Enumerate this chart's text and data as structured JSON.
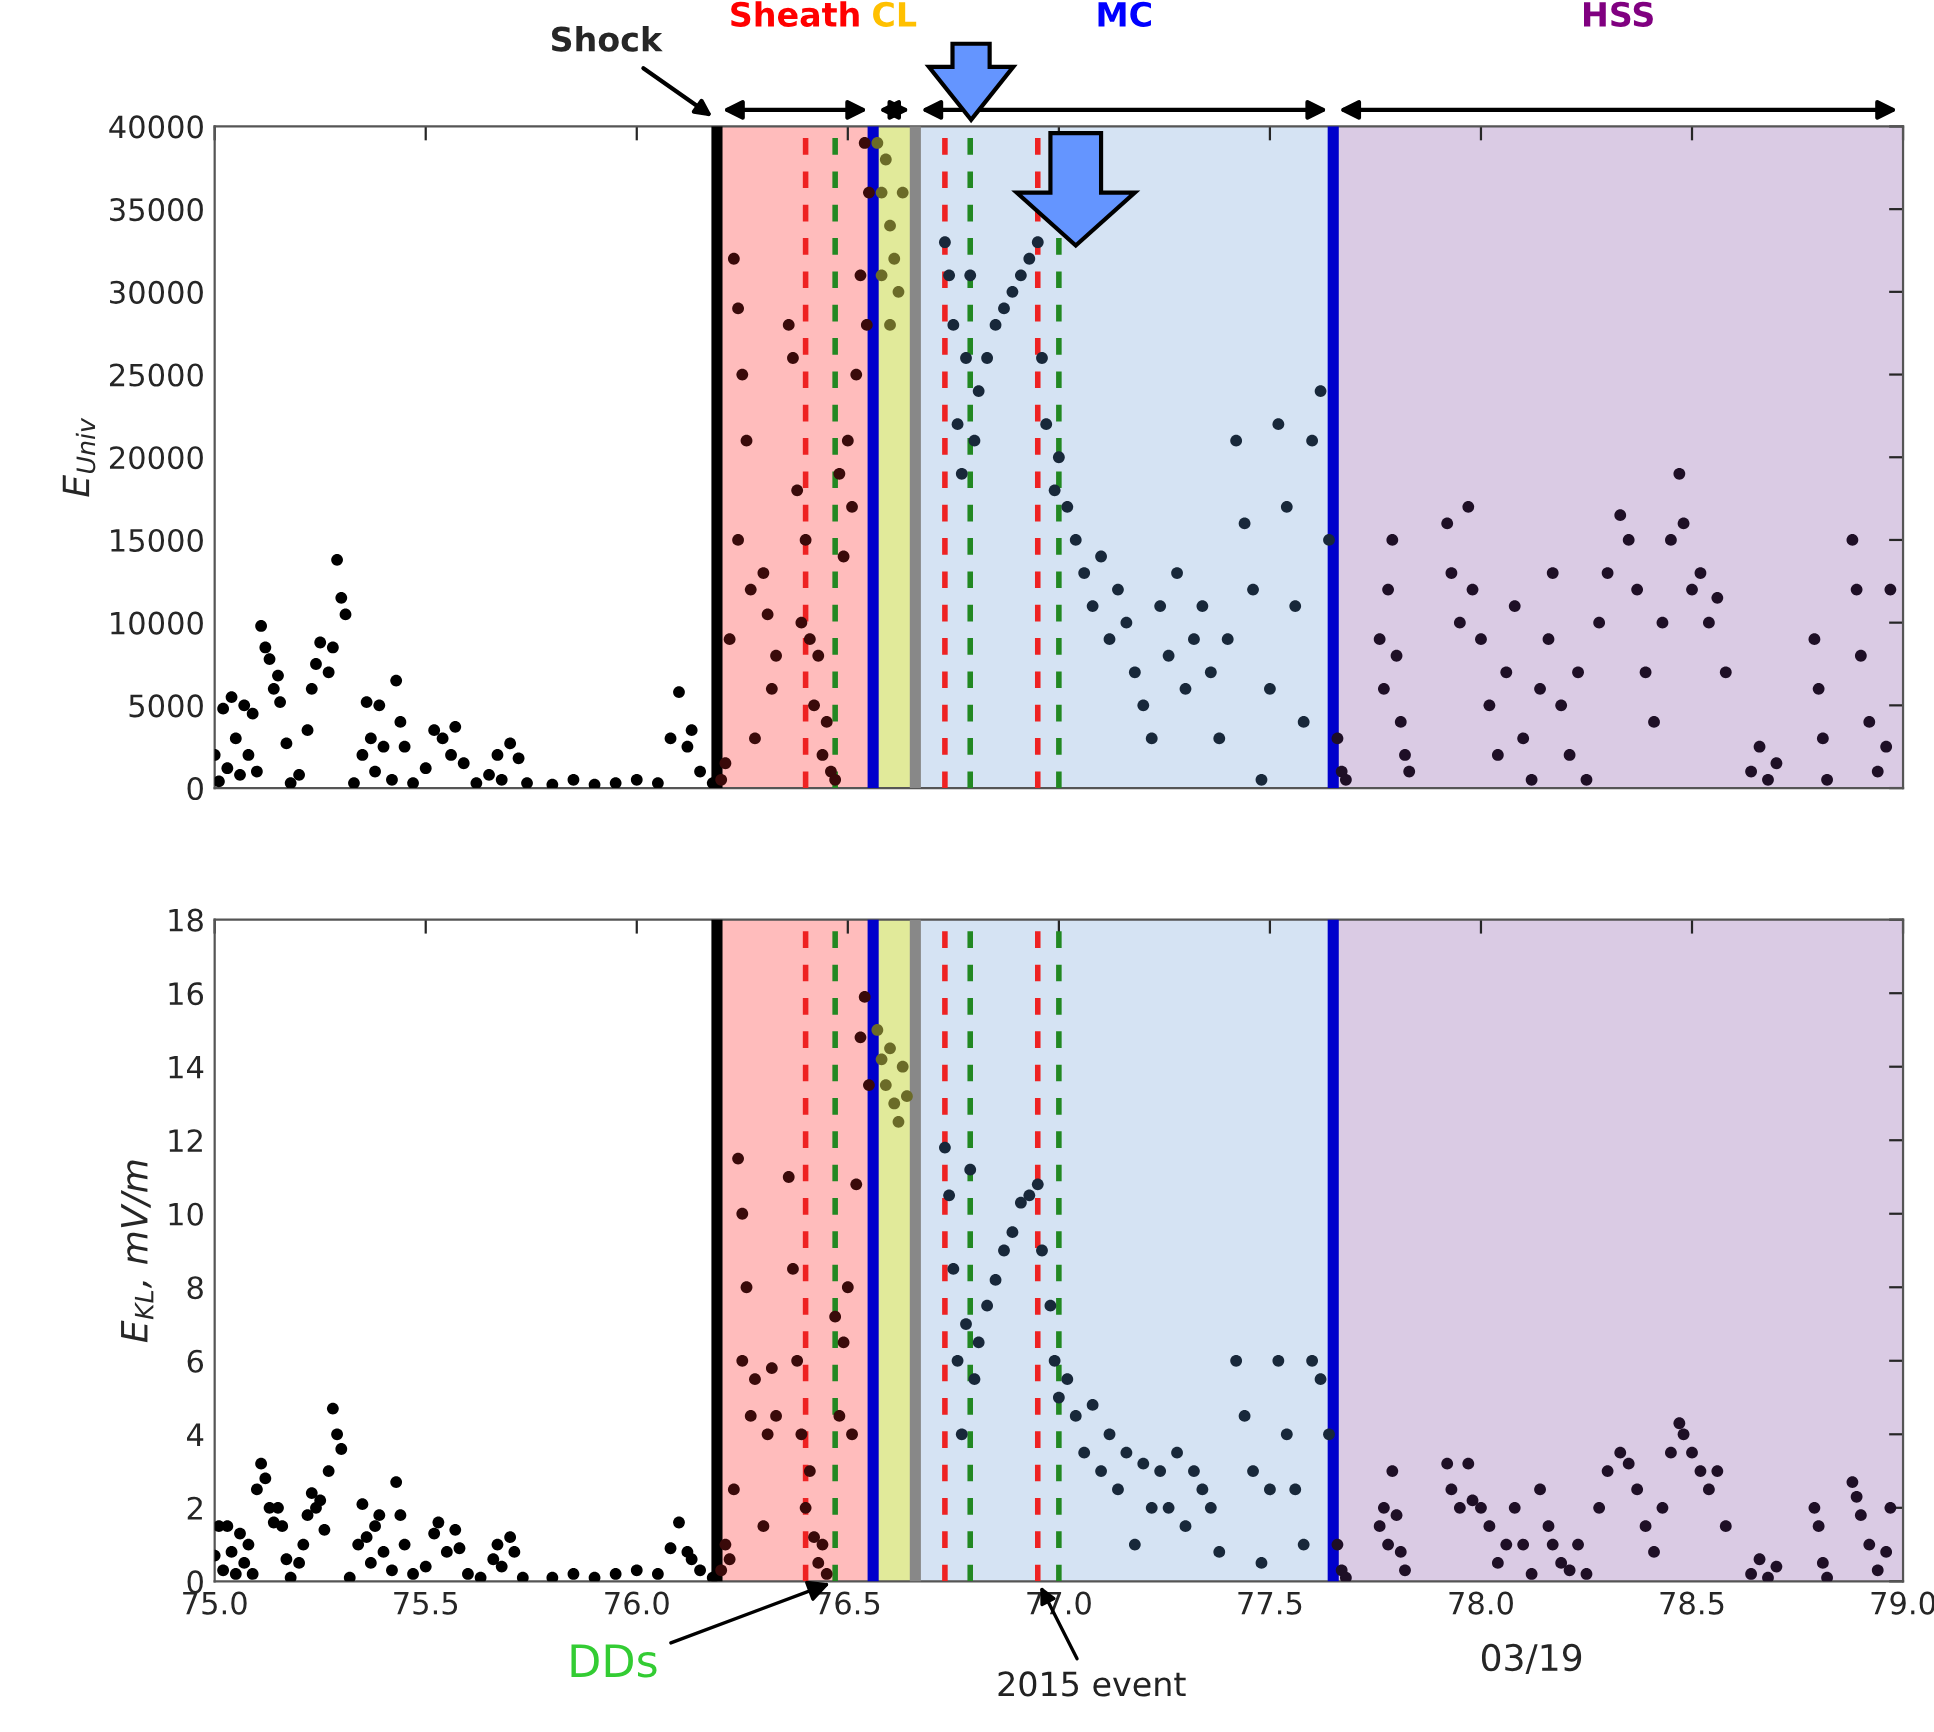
{
  "chart_data": [
    {
      "type": "scatter",
      "ylabel": "E$_{Univ}$",
      "xlim": [
        75.0,
        79.0
      ],
      "xticks": [
        75.0,
        75.5,
        76.0,
        76.5,
        77.0,
        77.5,
        78.0,
        78.5,
        79.0
      ],
      "ylim": [
        0,
        40000
      ],
      "yticks": [
        0,
        5000,
        10000,
        15000,
        20000,
        25000,
        30000,
        35000,
        40000
      ],
      "tick_labels": "y",
      "marker": "circle",
      "grid": false,
      "legend": false,
      "bands": [
        {
          "axis": "x",
          "from": 76.19,
          "to": 76.56,
          "color": "#ffbcbc",
          "label": "Sheath"
        },
        {
          "axis": "x",
          "from": 76.56,
          "to": 76.66,
          "color": "#e1ea9a",
          "label": "CL"
        },
        {
          "axis": "x",
          "from": 76.66,
          "to": 77.65,
          "color": "#d5e3f3",
          "label": "MC"
        },
        {
          "axis": "x",
          "from": 77.65,
          "to": 79.0,
          "color": "#dacbe4",
          "label": "HSS"
        }
      ],
      "ref_lines": [
        {
          "axis": "x",
          "value": 76.19,
          "color": "#000000",
          "line_style": "solid",
          "label": "Shock"
        },
        {
          "axis": "x",
          "value": 76.56,
          "color": "#0000cc",
          "line_style": "solid"
        },
        {
          "axis": "x",
          "value": 76.66,
          "color": "#888888",
          "line_style": "solid"
        },
        {
          "axis": "x",
          "value": 77.65,
          "color": "#0000cc",
          "line_style": "solid"
        },
        {
          "axis": "x",
          "value": 76.4,
          "color": "#ee2222",
          "line_style": "dashed"
        },
        {
          "axis": "x",
          "value": 76.47,
          "color": "#228822",
          "line_style": "dashed"
        },
        {
          "axis": "x",
          "value": 76.73,
          "color": "#ee2222",
          "line_style": "dashed"
        },
        {
          "axis": "x",
          "value": 76.79,
          "color": "#228822",
          "line_style": "dashed"
        },
        {
          "axis": "x",
          "value": 76.95,
          "color": "#ee2222",
          "line_style": "dashed"
        },
        {
          "axis": "x",
          "value": 77.0,
          "color": "#228822",
          "line_style": "dashed"
        }
      ],
      "series": [
        {
          "color": "#000000",
          "x": [
            75.0,
            75.01,
            75.02,
            75.03,
            75.04,
            75.05,
            75.06,
            75.07,
            75.08,
            75.09,
            75.1,
            75.11,
            75.12,
            75.13,
            75.14,
            75.15,
            75.155,
            75.17,
            75.18,
            75.2,
            75.22,
            75.23,
            75.24,
            75.25,
            75.27,
            75.28,
            75.29,
            75.3,
            75.31,
            75.33,
            75.35,
            75.36,
            75.37,
            75.38,
            75.39,
            75.4,
            75.42,
            75.43,
            75.44,
            75.45,
            75.47,
            75.5,
            75.52,
            75.54,
            75.56,
            75.57,
            75.59,
            75.62,
            75.65,
            75.67,
            75.68,
            75.7,
            75.72,
            75.74,
            75.8,
            75.85,
            75.9,
            75.95,
            76.0,
            76.05,
            76.08,
            76.1,
            76.12,
            76.13,
            76.15,
            76.18
          ],
          "values": [
            2000,
            400,
            4800,
            1200,
            5500,
            3000,
            800,
            5000,
            2000,
            4500,
            1000,
            9800,
            8500,
            7800,
            6000,
            6800,
            5200,
            2700,
            300,
            800,
            3500,
            6000,
            7500,
            8800,
            7000,
            8500,
            13800,
            11500,
            10500,
            300,
            2000,
            5200,
            3000,
            1000,
            5000,
            2500,
            500,
            6500,
            4000,
            2500,
            300,
            1200,
            3500,
            3000,
            2000,
            3700,
            1500,
            300,
            800,
            2000,
            500,
            2700,
            1800,
            300,
            200,
            500,
            200,
            300,
            500,
            300,
            3000,
            5800,
            2500,
            3500,
            1000,
            300
          ]
        },
        {
          "color": "#3a0a0a",
          "x": [
            76.2,
            76.21,
            76.22,
            76.23,
            76.24,
            76.25,
            76.24,
            76.26,
            76.27,
            76.28,
            76.3,
            76.31,
            76.32,
            76.33,
            76.36,
            76.37,
            76.38,
            76.39,
            76.4,
            76.41,
            76.42,
            76.43,
            76.44,
            76.45,
            76.46,
            76.47,
            76.48,
            76.49,
            76.5,
            76.51,
            76.52,
            76.53,
            76.54,
            76.55,
            76.545
          ],
          "values": [
            500,
            1500,
            9000,
            32000,
            29000,
            25000,
            15000,
            21000,
            12000,
            3000,
            13000,
            10500,
            6000,
            8000,
            28000,
            26000,
            18000,
            10000,
            15000,
            9000,
            5000,
            8000,
            2000,
            4000,
            1000,
            500,
            19000,
            14000,
            21000,
            17000,
            25000,
            31000,
            39000,
            36000,
            28000
          ]
        },
        {
          "color": "#6b6b28",
          "x": [
            76.57,
            76.58,
            76.59,
            76.6,
            76.61,
            76.62,
            76.63,
            76.6,
            76.58
          ],
          "values": [
            39000,
            36000,
            38000,
            34000,
            32000,
            30000,
            36000,
            28000,
            31000
          ]
        },
        {
          "color": "#18283a",
          "x": [
            76.73,
            76.74,
            76.75,
            76.76,
            76.77,
            76.78,
            76.79,
            76.8,
            76.81,
            76.83,
            76.85,
            76.87,
            76.89,
            76.91,
            76.93,
            76.95,
            76.96,
            76.97,
            76.99,
            77.0,
            77.02,
            77.04,
            77.06,
            77.08,
            77.1,
            77.12,
            77.14,
            77.16,
            77.18,
            77.2,
            77.22,
            77.24,
            77.26,
            77.28,
            77.3,
            77.32,
            77.34,
            77.36,
            77.38,
            77.4,
            77.42,
            77.44,
            77.46,
            77.48,
            77.5,
            77.52,
            77.54,
            77.56,
            77.58,
            77.6,
            77.62,
            77.64
          ],
          "values": [
            33000,
            31000,
            28000,
            22000,
            19000,
            26000,
            31000,
            21000,
            24000,
            26000,
            28000,
            29000,
            30000,
            31000,
            32000,
            33000,
            26000,
            22000,
            18000,
            20000,
            17000,
            15000,
            13000,
            11000,
            14000,
            9000,
            12000,
            10000,
            7000,
            5000,
            3000,
            11000,
            8000,
            13000,
            6000,
            9000,
            11000,
            7000,
            3000,
            9000,
            21000,
            16000,
            12000,
            500,
            6000,
            22000,
            17000,
            11000,
            4000,
            21000,
            24000,
            15000
          ]
        },
        {
          "color": "#1e0f26",
          "x": [
            77.66,
            77.67,
            77.68,
            77.76,
            77.77,
            77.78,
            77.79,
            77.8,
            77.81,
            77.82,
            77.83,
            77.92,
            77.93,
            77.95,
            77.97,
            77.98,
            78.0,
            78.02,
            78.04,
            78.06,
            78.08,
            78.1,
            78.12,
            78.14,
            78.16,
            78.17,
            78.19,
            78.21,
            78.23,
            78.25,
            78.28,
            78.3,
            78.33,
            78.35,
            78.37,
            78.39,
            78.41,
            78.43,
            78.45,
            78.47,
            78.48,
            78.5,
            78.52,
            78.54,
            78.56,
            78.58,
            78.64,
            78.66,
            78.68,
            78.7,
            78.79,
            78.8,
            78.81,
            78.82,
            78.88,
            78.89,
            78.9,
            78.92,
            78.94,
            78.96,
            78.97
          ],
          "values": [
            3000,
            1000,
            500,
            9000,
            6000,
            12000,
            15000,
            8000,
            4000,
            2000,
            1000,
            16000,
            13000,
            10000,
            17000,
            12000,
            9000,
            5000,
            2000,
            7000,
            11000,
            3000,
            500,
            6000,
            9000,
            13000,
            5000,
            2000,
            7000,
            500,
            10000,
            13000,
            16500,
            15000,
            12000,
            7000,
            4000,
            10000,
            15000,
            19000,
            16000,
            12000,
            13000,
            10000,
            11500,
            7000,
            1000,
            2500,
            500,
            1500,
            9000,
            6000,
            3000,
            500,
            15000,
            12000,
            8000,
            4000,
            1000,
            2500,
            12000
          ]
        }
      ]
    },
    {
      "type": "scatter",
      "ylabel": "E$_{KL}$, mV/m",
      "xlim": [
        75.0,
        79.0
      ],
      "xticks": [
        {
          "value": 75,
          "label": "75.0"
        },
        75.5,
        {
          "value": 76,
          "label": "76.0"
        },
        76.5,
        {
          "value": 77,
          "label": "77.0"
        },
        77.5,
        {
          "value": 78,
          "label": "78.0"
        },
        78.5,
        {
          "value": 79,
          "label": "79.0"
        }
      ],
      "ylim": [
        0,
        18
      ],
      "yticks": [
        0,
        2,
        4,
        6,
        8,
        10,
        12,
        14,
        16,
        18
      ],
      "marker": "circle",
      "grid": false,
      "legend": false,
      "bands": [
        {
          "axis": "x",
          "from": 76.19,
          "to": 76.56,
          "color": "#ffbcbc"
        },
        {
          "axis": "x",
          "from": 76.56,
          "to": 76.66,
          "color": "#e1ea9a"
        },
        {
          "axis": "x",
          "from": 76.66,
          "to": 77.65,
          "color": "#d5e3f3"
        },
        {
          "axis": "x",
          "from": 77.65,
          "to": 79.0,
          "color": "#dacbe4"
        }
      ],
      "ref_lines": [
        {
          "axis": "x",
          "value": 76.19,
          "color": "#000000",
          "line_style": "solid"
        },
        {
          "axis": "x",
          "value": 76.56,
          "color": "#0000cc",
          "line_style": "solid"
        },
        {
          "axis": "x",
          "value": 76.66,
          "color": "#888888",
          "line_style": "solid"
        },
        {
          "axis": "x",
          "value": 77.65,
          "color": "#0000cc",
          "line_style": "solid"
        },
        {
          "axis": "x",
          "value": 76.4,
          "color": "#ee2222",
          "line_style": "dashed"
        },
        {
          "axis": "x",
          "value": 76.47,
          "color": "#228822",
          "line_style": "dashed"
        },
        {
          "axis": "x",
          "value": 76.73,
          "color": "#ee2222",
          "line_style": "dashed"
        },
        {
          "axis": "x",
          "value": 76.79,
          "color": "#228822",
          "line_style": "dashed"
        },
        {
          "axis": "x",
          "value": 76.95,
          "color": "#ee2222",
          "line_style": "dashed"
        },
        {
          "axis": "x",
          "value": 77.0,
          "color": "#228822",
          "line_style": "dashed"
        }
      ],
      "annotations": [
        {
          "text": "DDs",
          "x": 76.47,
          "y": 0
        },
        {
          "text": "2015 event",
          "x": 76.95,
          "y": 0
        },
        "03/19"
      ],
      "series": [
        {
          "color": "#000000",
          "x": [
            75.0,
            75.01,
            75.02,
            75.03,
            75.04,
            75.05,
            75.06,
            75.07,
            75.08,
            75.09,
            75.1,
            75.11,
            75.12,
            75.13,
            75.14,
            75.15,
            75.16,
            75.17,
            75.18,
            75.2,
            75.21,
            75.22,
            75.23,
            75.24,
            75.25,
            75.26,
            75.27,
            75.28,
            75.29,
            75.3,
            75.32,
            75.34,
            75.35,
            75.36,
            75.37,
            75.38,
            75.39,
            75.4,
            75.42,
            75.43,
            75.44,
            75.45,
            75.47,
            75.5,
            75.52,
            75.53,
            75.55,
            75.57,
            75.58,
            75.6,
            75.63,
            75.66,
            75.67,
            75.68,
            75.7,
            75.71,
            75.73,
            75.8,
            75.85,
            75.9,
            75.95,
            76.0,
            76.05,
            76.08,
            76.1,
            76.12,
            76.13,
            76.15,
            76.18
          ],
          "values": [
            0.7,
            1.5,
            0.3,
            1.5,
            0.8,
            0.2,
            1.3,
            0.5,
            1.0,
            0.2,
            2.5,
            3.2,
            2.8,
            2.0,
            1.6,
            2.0,
            1.5,
            0.6,
            0.1,
            0.5,
            1.0,
            1.8,
            2.4,
            2.0,
            2.2,
            1.4,
            3.0,
            4.7,
            4.0,
            3.6,
            0.1,
            1.0,
            2.1,
            1.2,
            0.5,
            1.5,
            1.8,
            0.8,
            0.3,
            2.7,
            1.8,
            1.0,
            0.2,
            0.4,
            1.3,
            1.6,
            0.8,
            1.4,
            0.9,
            0.2,
            0.1,
            0.6,
            1.0,
            0.4,
            1.2,
            0.8,
            0.1,
            0.1,
            0.2,
            0.1,
            0.2,
            0.3,
            0.2,
            0.9,
            1.6,
            0.8,
            0.6,
            0.3,
            0.1
          ]
        },
        {
          "color": "#3a0a0a",
          "x": [
            76.2,
            76.21,
            76.22,
            76.23,
            76.24,
            76.25,
            76.26,
            76.25,
            76.27,
            76.28,
            76.3,
            76.31,
            76.32,
            76.33,
            76.36,
            76.37,
            76.38,
            76.39,
            76.4,
            76.41,
            76.42,
            76.43,
            76.44,
            76.45,
            76.47,
            76.48,
            76.49,
            76.5,
            76.51,
            76.52,
            76.53,
            76.54,
            76.55
          ],
          "values": [
            0.3,
            1.0,
            0.6,
            2.5,
            11.5,
            10.0,
            8.0,
            6.0,
            4.5,
            5.5,
            1.5,
            4.0,
            5.8,
            4.5,
            11.0,
            8.5,
            6.0,
            4.0,
            2.0,
            3.0,
            1.2,
            0.5,
            1.0,
            0.2,
            7.2,
            4.5,
            6.5,
            8.0,
            4.0,
            10.8,
            14.8,
            15.9,
            13.5
          ]
        },
        {
          "color": "#6b6b28",
          "x": [
            76.57,
            76.58,
            76.59,
            76.6,
            76.61,
            76.62,
            76.63,
            76.64
          ],
          "values": [
            15.0,
            14.2,
            13.5,
            14.5,
            13.0,
            12.5,
            14.0,
            13.2
          ]
        },
        {
          "color": "#18283a",
          "x": [
            76.73,
            76.74,
            76.75,
            76.76,
            76.77,
            76.78,
            76.79,
            76.8,
            76.81,
            76.83,
            76.85,
            76.87,
            76.89,
            76.91,
            76.93,
            76.95,
            76.96,
            76.98,
            76.99,
            77.0,
            77.02,
            77.04,
            77.06,
            77.08,
            77.1,
            77.12,
            77.14,
            77.16,
            77.18,
            77.2,
            77.22,
            77.24,
            77.26,
            77.28,
            77.3,
            77.32,
            77.34,
            77.36,
            77.38,
            77.42,
            77.44,
            77.46,
            77.48,
            77.5,
            77.52,
            77.54,
            77.56,
            77.58,
            77.6,
            77.62,
            77.64
          ],
          "values": [
            11.8,
            10.5,
            8.5,
            6.0,
            4.0,
            7.0,
            11.2,
            5.5,
            6.5,
            7.5,
            8.2,
            9.0,
            9.5,
            10.3,
            10.5,
            10.8,
            9.0,
            7.5,
            6.0,
            5.0,
            5.5,
            4.5,
            3.5,
            4.8,
            3.0,
            4.0,
            2.5,
            3.5,
            1.0,
            3.2,
            2.0,
            3.0,
            2.0,
            3.5,
            1.5,
            3.0,
            2.5,
            2.0,
            0.8,
            6.0,
            4.5,
            3.0,
            0.5,
            2.5,
            6.0,
            4.0,
            2.5,
            1.0,
            6.0,
            5.5,
            4.0
          ]
        },
        {
          "color": "#1e0f26",
          "x": [
            77.66,
            77.67,
            77.68,
            77.76,
            77.77,
            77.78,
            77.79,
            77.8,
            77.81,
            77.82,
            77.92,
            77.93,
            77.95,
            77.97,
            77.98,
            78.0,
            78.02,
            78.04,
            78.06,
            78.08,
            78.1,
            78.12,
            78.14,
            78.16,
            78.17,
            78.19,
            78.21,
            78.23,
            78.25,
            78.28,
            78.3,
            78.33,
            78.35,
            78.37,
            78.39,
            78.41,
            78.43,
            78.45,
            78.47,
            78.48,
            78.5,
            78.52,
            78.54,
            78.56,
            78.58,
            78.64,
            78.66,
            78.68,
            78.7,
            78.79,
            78.8,
            78.81,
            78.82,
            78.88,
            78.89,
            78.9,
            78.92,
            78.94,
            78.96,
            78.97
          ],
          "values": [
            1.0,
            0.3,
            0.1,
            1.5,
            2.0,
            1.0,
            3.0,
            1.8,
            0.8,
            0.3,
            3.2,
            2.5,
            2.0,
            3.2,
            2.2,
            2.0,
            1.5,
            0.5,
            1.0,
            2.0,
            1.0,
            0.2,
            2.5,
            1.5,
            1.0,
            0.5,
            0.3,
            1.0,
            0.2,
            2.0,
            3.0,
            3.5,
            3.2,
            2.5,
            1.5,
            0.8,
            2.0,
            3.5,
            4.3,
            4.0,
            3.5,
            3.0,
            2.5,
            3.0,
            1.5,
            0.2,
            0.6,
            0.1,
            0.4,
            2.0,
            1.5,
            0.5,
            0.1,
            2.7,
            2.3,
            1.8,
            1.0,
            0.3,
            0.8,
            2.0
          ]
        }
      ]
    }
  ]
}
